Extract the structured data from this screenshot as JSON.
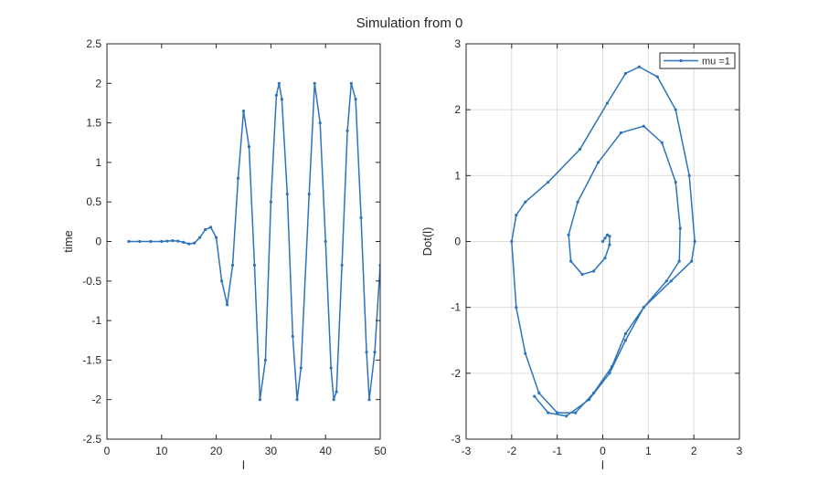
{
  "suptitle": "Simulation from 0",
  "colors": {
    "series": "#2e74b9",
    "axis": "#262626",
    "grid": "#dcdcdc",
    "background": "#ffffff"
  },
  "chart_data": [
    {
      "type": "line",
      "marker": "dot",
      "xlabel": "l",
      "ylabel": "time",
      "xlim": [
        0,
        50
      ],
      "ylim": [
        -2.5,
        2.5
      ],
      "xticks": [
        0,
        10,
        20,
        30,
        40,
        50
      ],
      "yticks": [
        -2.5,
        -2,
        -1.5,
        -1,
        -0.5,
        0,
        0.5,
        1,
        1.5,
        2,
        2.5
      ],
      "grid": false,
      "series": [
        {
          "points": [
            [
              4,
              0
            ],
            [
              6,
              0
            ],
            [
              8,
              0
            ],
            [
              10,
              0
            ],
            [
              11,
              0.005
            ],
            [
              12,
              0.01
            ],
            [
              13,
              0.005
            ],
            [
              14,
              -0.01
            ],
            [
              15,
              -0.03
            ],
            [
              16,
              -0.02
            ],
            [
              17,
              0.05
            ],
            [
              18,
              0.15
            ],
            [
              19,
              0.18
            ],
            [
              20,
              0.05
            ],
            [
              21,
              -0.5
            ],
            [
              22,
              -0.8
            ],
            [
              23,
              -0.3
            ],
            [
              24,
              0.8
            ],
            [
              25,
              1.65
            ],
            [
              26,
              1.2
            ],
            [
              27,
              -0.3
            ],
            [
              28,
              -2.0
            ],
            [
              29,
              -1.5
            ],
            [
              30,
              0.5
            ],
            [
              31,
              1.85
            ],
            [
              31.5,
              2.0
            ],
            [
              32,
              1.8
            ],
            [
              33,
              0.6
            ],
            [
              34,
              -1.2
            ],
            [
              34.8,
              -2.0
            ],
            [
              35.5,
              -1.6
            ],
            [
              37,
              0.6
            ],
            [
              38,
              2.0
            ],
            [
              39,
              1.5
            ],
            [
              40,
              0.0
            ],
            [
              41,
              -1.6
            ],
            [
              41.5,
              -2.0
            ],
            [
              42,
              -1.9
            ],
            [
              43,
              -0.3
            ],
            [
              44,
              1.4
            ],
            [
              44.7,
              2.0
            ],
            [
              45.5,
              1.8
            ],
            [
              46.5,
              0.3
            ],
            [
              47.5,
              -1.4
            ],
            [
              48,
              -2.0
            ],
            [
              49,
              -1.4
            ],
            [
              50,
              -0.3
            ]
          ]
        }
      ]
    },
    {
      "type": "line",
      "marker": "dot",
      "xlabel": "l",
      "ylabel": "Dot(l)",
      "xlim": [
        -3,
        3
      ],
      "ylim": [
        -3,
        3
      ],
      "xticks": [
        -3,
        -2,
        -1,
        0,
        1,
        2,
        3
      ],
      "yticks": [
        -3,
        -2,
        -1,
        0,
        1,
        2,
        3
      ],
      "grid": true,
      "legend": {
        "position": "top-right"
      },
      "series": [
        {
          "name": "mu =1",
          "points": [
            [
              0,
              0
            ],
            [
              0.05,
              0.05
            ],
            [
              0.1,
              0.1
            ],
            [
              0.15,
              0.08
            ],
            [
              0.15,
              -0.05
            ],
            [
              0.05,
              -0.25
            ],
            [
              -0.2,
              -0.45
            ],
            [
              -0.45,
              -0.5
            ],
            [
              -0.7,
              -0.3
            ],
            [
              -0.75,
              0.1
            ],
            [
              -0.55,
              0.6
            ],
            [
              -0.1,
              1.2
            ],
            [
              0.4,
              1.65
            ],
            [
              0.9,
              1.75
            ],
            [
              1.3,
              1.5
            ],
            [
              1.6,
              0.9
            ],
            [
              1.7,
              0.2
            ],
            [
              1.68,
              -0.3
            ],
            [
              1.4,
              -0.6
            ],
            [
              0.9,
              -1.0
            ],
            [
              0.5,
              -1.4
            ],
            [
              0.2,
              -1.9
            ],
            [
              -0.2,
              -2.3
            ],
            [
              -0.6,
              -2.6
            ],
            [
              -1.0,
              -2.6
            ],
            [
              -1.4,
              -2.3
            ],
            [
              -1.7,
              -1.7
            ],
            [
              -1.9,
              -1.0
            ],
            [
              -2.0,
              0.0
            ],
            [
              -1.9,
              0.4
            ],
            [
              -1.7,
              0.6
            ],
            [
              -1.2,
              0.9
            ],
            [
              -0.5,
              1.4
            ],
            [
              0.1,
              2.1
            ],
            [
              0.5,
              2.55
            ],
            [
              0.8,
              2.65
            ],
            [
              1.2,
              2.5
            ],
            [
              1.6,
              2.0
            ],
            [
              1.9,
              1.0
            ],
            [
              2.02,
              0.0
            ],
            [
              1.95,
              -0.3
            ],
            [
              1.5,
              -0.6
            ],
            [
              0.9,
              -1.0
            ],
            [
              0.5,
              -1.5
            ],
            [
              0.15,
              -2.0
            ],
            [
              -0.3,
              -2.4
            ],
            [
              -0.8,
              -2.65
            ],
            [
              -1.2,
              -2.6
            ],
            [
              -1.5,
              -2.35
            ]
          ]
        }
      ]
    }
  ]
}
